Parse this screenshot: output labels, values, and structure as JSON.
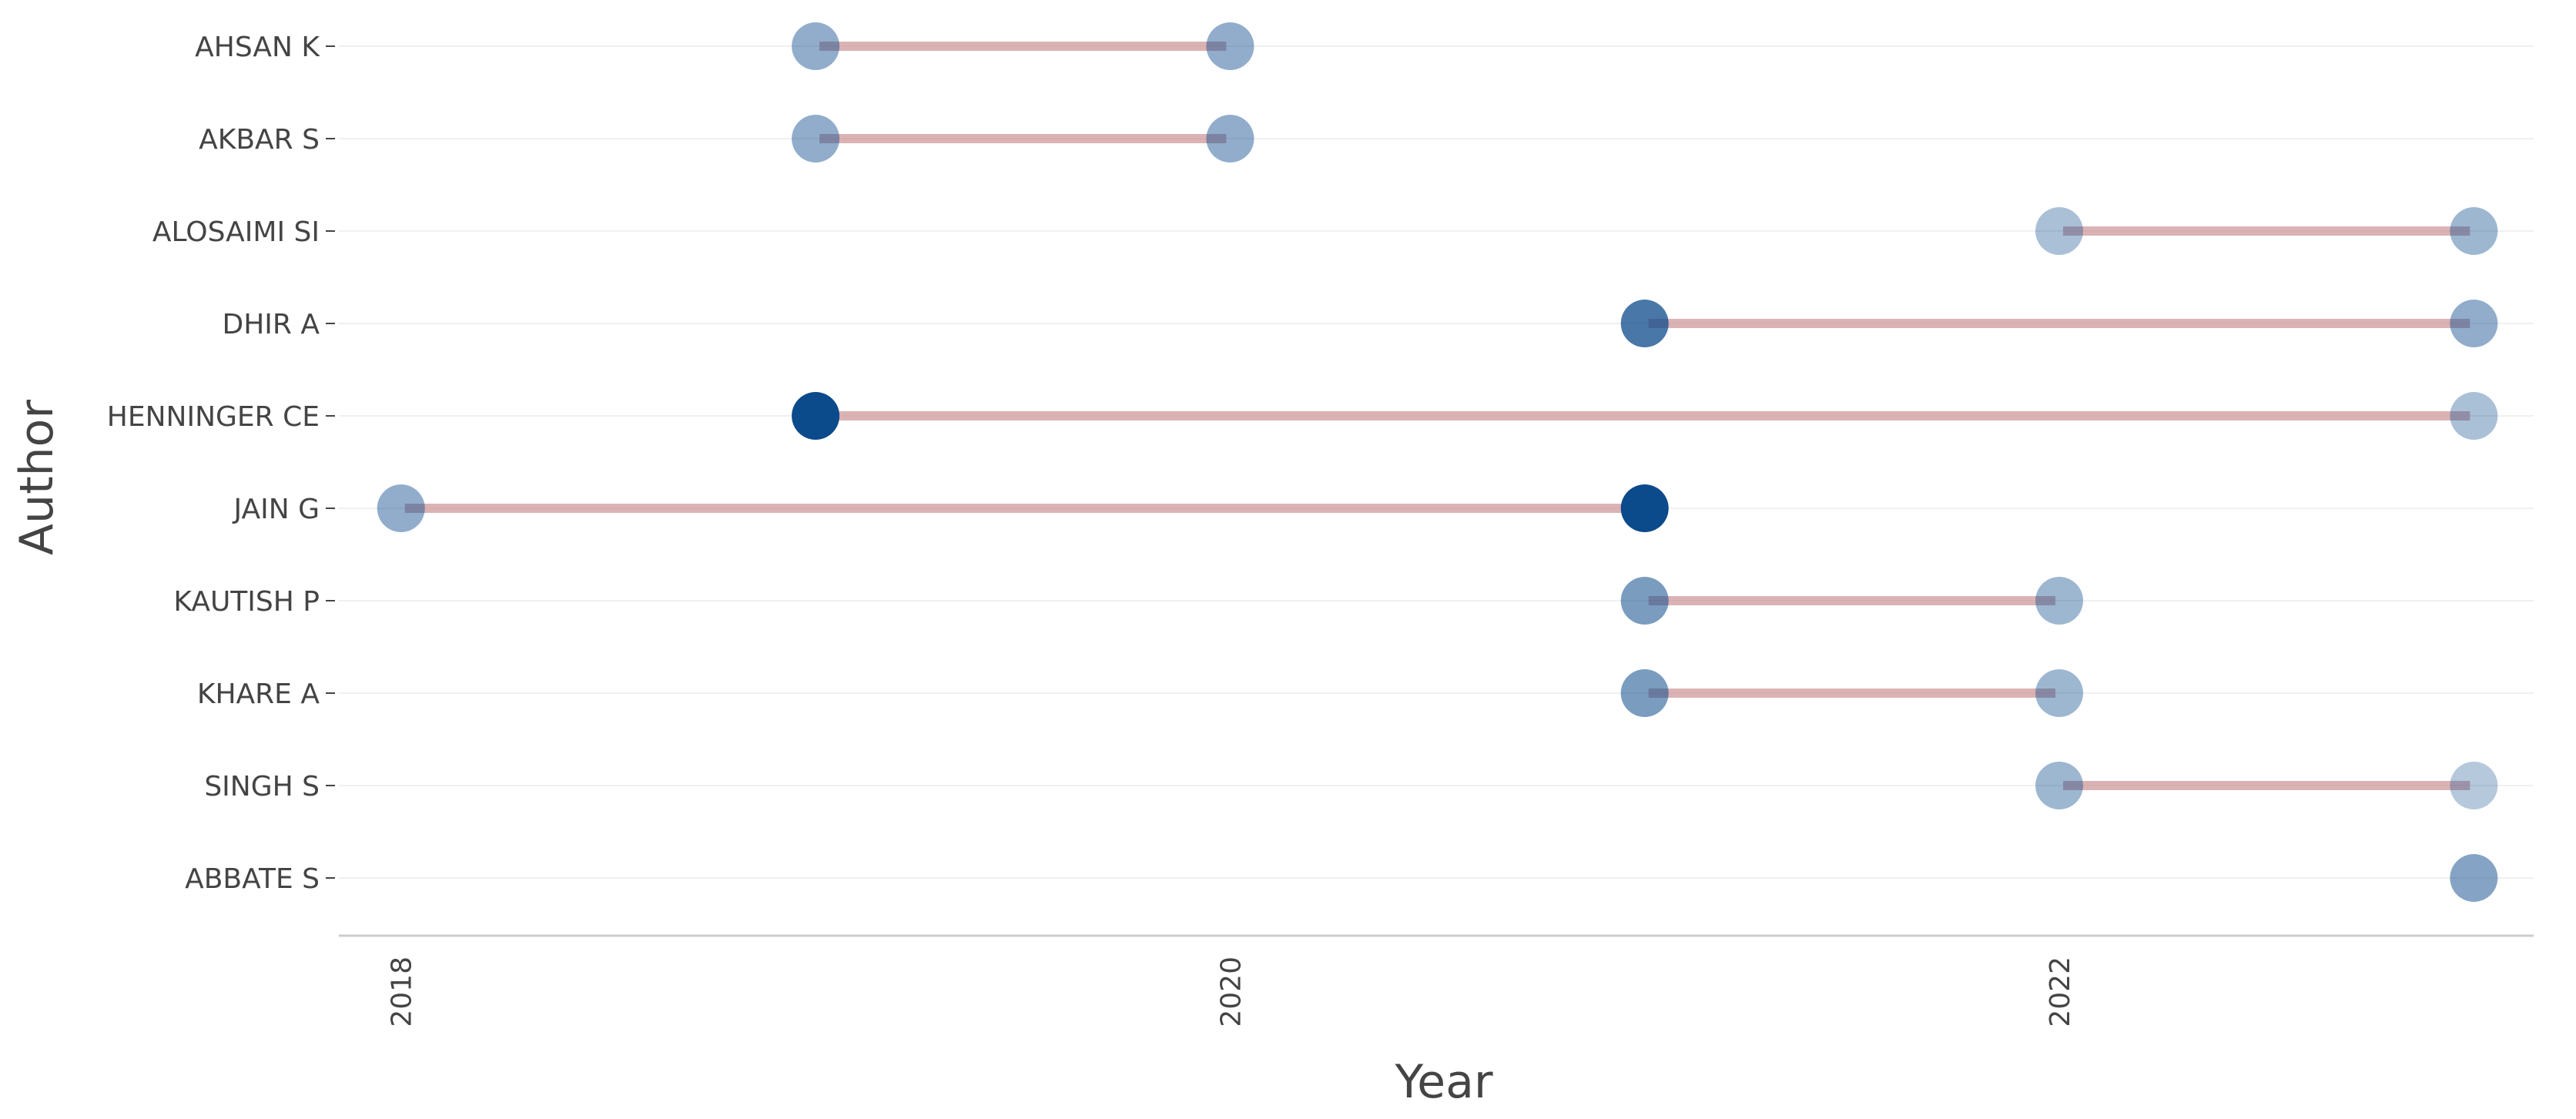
{
  "chart_data": {
    "type": "scatter",
    "xlabel": "Year",
    "ylabel": "Author",
    "x_ticks": [
      "2018",
      "2020",
      "2022"
    ],
    "xlim": [
      2017.85,
      2023.2
    ],
    "authors": [
      "AHSAN K",
      "AKBAR S",
      "ALOSAIMI SI",
      "DHIR A",
      "HENNINGER CE",
      "JAIN G",
      "KAUTISH P",
      "KHARE A",
      "SINGH S",
      "ABBATE S"
    ],
    "segments": [
      {
        "author": "AHSAN K",
        "start": 2019,
        "end": 2020
      },
      {
        "author": "AKBAR S",
        "start": 2019,
        "end": 2020
      },
      {
        "author": "ALOSAIMI SI",
        "start": 2022,
        "end": 2023
      },
      {
        "author": "DHIR A",
        "start": 2021,
        "end": 2023
      },
      {
        "author": "HENNINGER CE",
        "start": 2019,
        "end": 2023
      },
      {
        "author": "JAIN G",
        "start": 2018,
        "end": 2021
      },
      {
        "author": "KAUTISH P",
        "start": 2021,
        "end": 2022
      },
      {
        "author": "KHARE A",
        "start": 2021,
        "end": 2022
      },
      {
        "author": "SINGH S",
        "start": 2022,
        "end": 2023
      }
    ],
    "points": [
      {
        "author": "AHSAN K",
        "year": 2019,
        "shade": 0.45
      },
      {
        "author": "AHSAN K",
        "year": 2020,
        "shade": 0.45
      },
      {
        "author": "AKBAR S",
        "year": 2019,
        "shade": 0.45
      },
      {
        "author": "AKBAR S",
        "year": 2020,
        "shade": 0.45
      },
      {
        "author": "ALOSAIMI SI",
        "year": 2022,
        "shade": 0.35
      },
      {
        "author": "ALOSAIMI SI",
        "year": 2023,
        "shade": 0.4
      },
      {
        "author": "DHIR A",
        "year": 2021,
        "shade": 0.75
      },
      {
        "author": "DHIR A",
        "year": 2023,
        "shade": 0.45
      },
      {
        "author": "HENNINGER CE",
        "year": 2019,
        "shade": 1.0
      },
      {
        "author": "HENNINGER CE",
        "year": 2023,
        "shade": 0.35
      },
      {
        "author": "JAIN G",
        "year": 2018,
        "shade": 0.45
      },
      {
        "author": "JAIN G",
        "year": 2021,
        "shade": 1.0
      },
      {
        "author": "KAUTISH P",
        "year": 2021,
        "shade": 0.55
      },
      {
        "author": "KAUTISH P",
        "year": 2022,
        "shade": 0.4
      },
      {
        "author": "KHARE A",
        "year": 2021,
        "shade": 0.55
      },
      {
        "author": "KHARE A",
        "year": 2022,
        "shade": 0.4
      },
      {
        "author": "SINGH S",
        "year": 2022,
        "shade": 0.4
      },
      {
        "author": "SINGH S",
        "year": 2023,
        "shade": 0.3
      },
      {
        "author": "ABBATE S",
        "year": 2023,
        "shade": 0.5
      }
    ],
    "grid": true,
    "colors": {
      "point": "#0b4a8b",
      "segment": "#c98b8e",
      "grid": "#f0f0f0",
      "axis": "#cccccc",
      "text": "#444444"
    }
  }
}
